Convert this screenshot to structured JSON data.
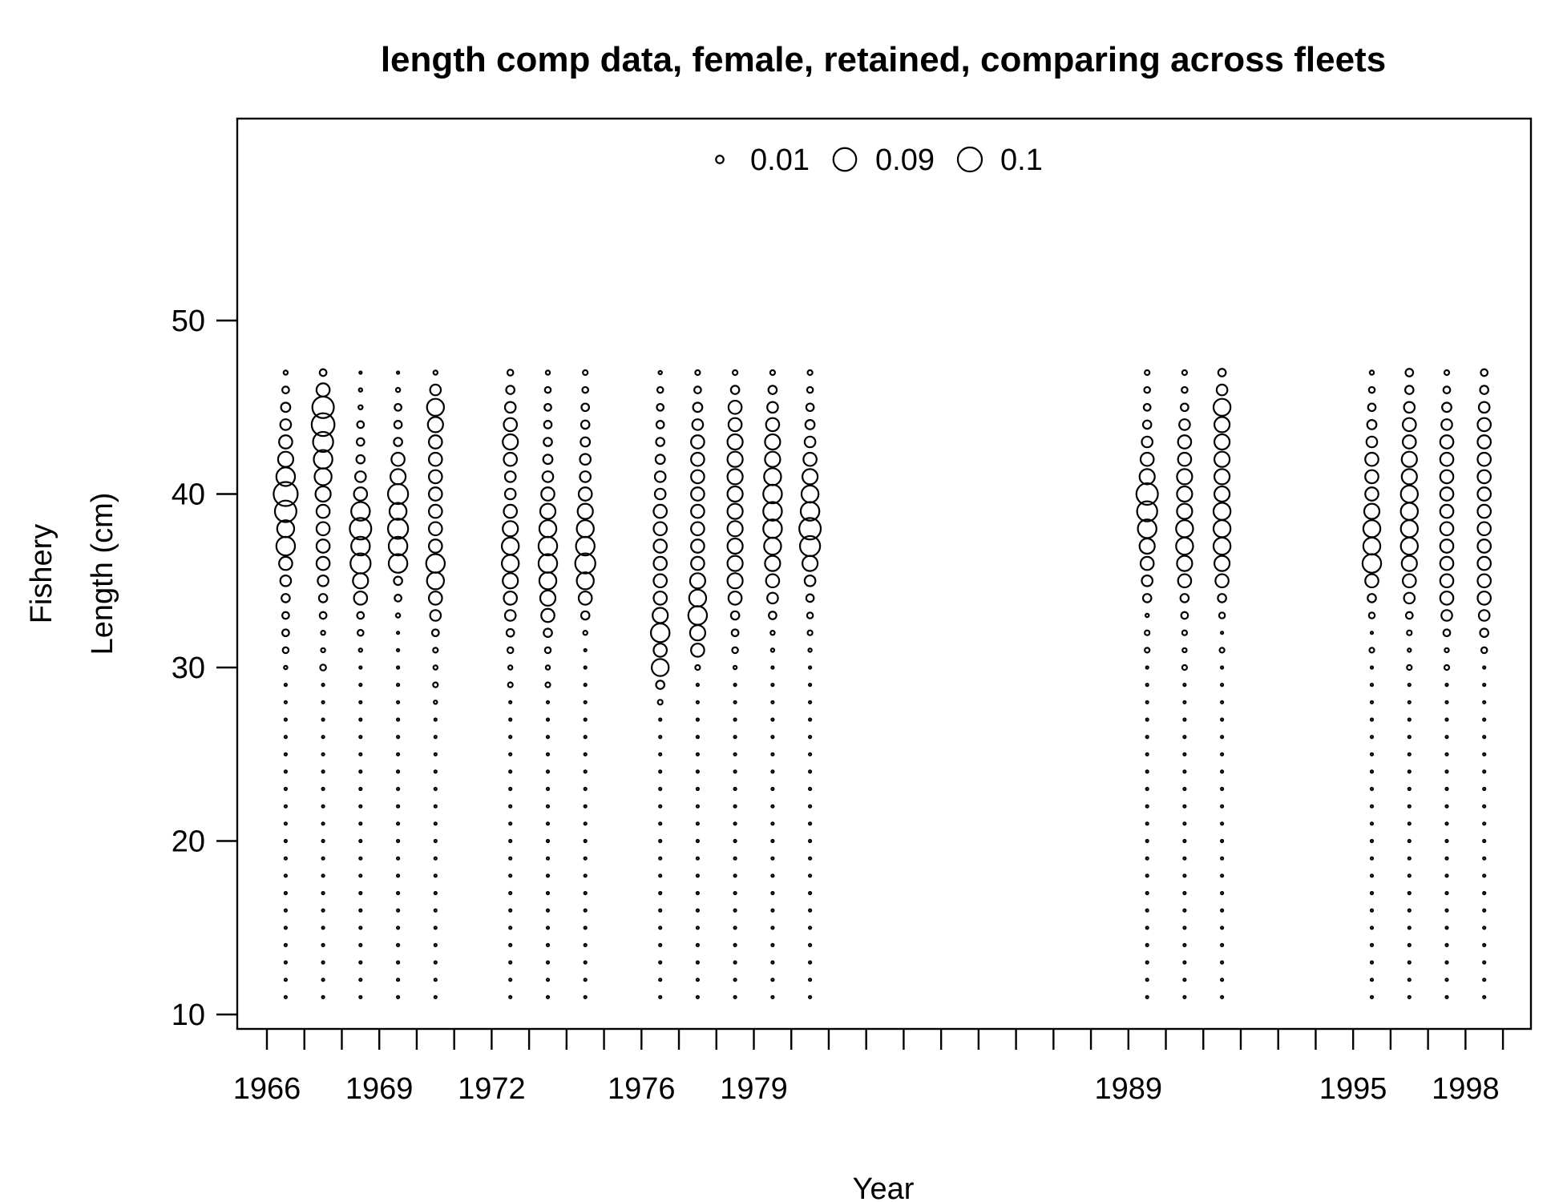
{
  "chart_data": {
    "type": "scatter",
    "title": "length comp data, female, retained, comparing across fleets",
    "xlabel": "Year",
    "ylabel_line1": "Fishery",
    "ylabel_line2": "Length (cm)",
    "y_ticks": [
      10,
      20,
      30,
      40,
      50
    ],
    "ylim": [
      10,
      60
    ],
    "x_tick_labels": [
      "1966",
      "1969",
      "1972",
      "1976",
      "1979",
      "1989",
      "1995",
      "1998"
    ],
    "x_ticks": [
      1966,
      1967,
      1968,
      1969,
      1970,
      1971,
      1972,
      1973,
      1974,
      1975,
      1976,
      1977,
      1978,
      1979,
      1980,
      1981,
      1982,
      1983,
      1984,
      1985,
      1986,
      1987,
      1988,
      1989,
      1990,
      1991,
      1992,
      1993,
      1994,
      1995,
      1996,
      1997,
      1998,
      1999
    ],
    "xlim": [
      1965.6,
      1999.3
    ],
    "legend": {
      "placement": "top",
      "values": [
        0.01,
        0.09,
        0.1
      ],
      "labels": [
        "0.01",
        "0.09",
        "0.1"
      ]
    },
    "length_bins": [
      11,
      12,
      13,
      14,
      15,
      16,
      17,
      18,
      19,
      20,
      21,
      22,
      23,
      24,
      25,
      26,
      27,
      28,
      29,
      30,
      31,
      32,
      33,
      34,
      35,
      36,
      37,
      38,
      39,
      40,
      41,
      42,
      43,
      44,
      45,
      46,
      47
    ],
    "series": [
      {
        "year": 1966.5,
        "proportions": [
          0.001,
          0.001,
          0.001,
          0.001,
          0.001,
          0.001,
          0.001,
          0.001,
          0.001,
          0.001,
          0.001,
          0.001,
          0.001,
          0.001,
          0.001,
          0.001,
          0.001,
          0.001,
          0.001,
          0.002,
          0.006,
          0.008,
          0.008,
          0.012,
          0.02,
          0.03,
          0.06,
          0.05,
          0.08,
          0.1,
          0.06,
          0.04,
          0.03,
          0.02,
          0.015,
          0.008,
          0.003
        ]
      },
      {
        "year": 1967.5,
        "proportions": [
          0.001,
          0.001,
          0.001,
          0.001,
          0.001,
          0.001,
          0.001,
          0.001,
          0.001,
          0.001,
          0.001,
          0.001,
          0.001,
          0.001,
          0.001,
          0.001,
          0.001,
          0.001,
          0.001,
          0.006,
          0.003,
          0.003,
          0.008,
          0.012,
          0.02,
          0.03,
          0.03,
          0.03,
          0.03,
          0.04,
          0.05,
          0.06,
          0.07,
          0.09,
          0.08,
          0.03,
          0.008
        ]
      },
      {
        "year": 1968.5,
        "proportions": [
          0.001,
          0.001,
          0.001,
          0.001,
          0.001,
          0.001,
          0.001,
          0.001,
          0.001,
          0.001,
          0.001,
          0.001,
          0.001,
          0.001,
          0.001,
          0.001,
          0.001,
          0.001,
          0.001,
          0.001,
          0.002,
          0.006,
          0.008,
          0.03,
          0.04,
          0.07,
          0.06,
          0.08,
          0.06,
          0.03,
          0.02,
          0.012,
          0.01,
          0.008,
          0.003,
          0.002,
          0.001
        ]
      },
      {
        "year": 1969.5,
        "proportions": [
          0.001,
          0.001,
          0.001,
          0.001,
          0.001,
          0.001,
          0.001,
          0.001,
          0.001,
          0.001,
          0.001,
          0.001,
          0.001,
          0.001,
          0.001,
          0.001,
          0.001,
          0.001,
          0.001,
          0.001,
          0.001,
          0.001,
          0.003,
          0.008,
          0.012,
          0.06,
          0.06,
          0.07,
          0.05,
          0.07,
          0.04,
          0.03,
          0.012,
          0.01,
          0.008,
          0.003,
          0.001
        ]
      },
      {
        "year": 1970.5,
        "proportions": [
          0.001,
          0.001,
          0.001,
          0.001,
          0.001,
          0.001,
          0.001,
          0.001,
          0.001,
          0.001,
          0.001,
          0.001,
          0.001,
          0.001,
          0.001,
          0.001,
          0.001,
          0.002,
          0.004,
          0.003,
          0.004,
          0.008,
          0.02,
          0.03,
          0.05,
          0.06,
          0.03,
          0.03,
          0.03,
          0.03,
          0.03,
          0.03,
          0.03,
          0.04,
          0.05,
          0.02,
          0.003
        ]
      },
      {
        "year": 1972.5,
        "proportions": [
          0.001,
          0.001,
          0.001,
          0.001,
          0.001,
          0.001,
          0.001,
          0.001,
          0.001,
          0.001,
          0.001,
          0.001,
          0.001,
          0.001,
          0.001,
          0.001,
          0.001,
          0.001,
          0.004,
          0.003,
          0.006,
          0.01,
          0.02,
          0.03,
          0.04,
          0.05,
          0.05,
          0.04,
          0.03,
          0.02,
          0.02,
          0.03,
          0.04,
          0.03,
          0.02,
          0.012,
          0.006
        ]
      },
      {
        "year": 1973.5,
        "proportions": [
          0.001,
          0.001,
          0.001,
          0.001,
          0.001,
          0.001,
          0.001,
          0.001,
          0.001,
          0.001,
          0.001,
          0.001,
          0.001,
          0.001,
          0.001,
          0.001,
          0.001,
          0.001,
          0.004,
          0.003,
          0.006,
          0.012,
          0.03,
          0.04,
          0.05,
          0.06,
          0.06,
          0.05,
          0.04,
          0.03,
          0.02,
          0.015,
          0.012,
          0.01,
          0.008,
          0.006,
          0.003
        ]
      },
      {
        "year": 1974.5,
        "proportions": [
          0.001,
          0.001,
          0.001,
          0.001,
          0.001,
          0.001,
          0.001,
          0.001,
          0.001,
          0.001,
          0.001,
          0.001,
          0.001,
          0.001,
          0.001,
          0.001,
          0.001,
          0.001,
          0.001,
          0.001,
          0.001,
          0.003,
          0.012,
          0.03,
          0.05,
          0.07,
          0.06,
          0.05,
          0.04,
          0.03,
          0.02,
          0.02,
          0.015,
          0.012,
          0.01,
          0.006,
          0.004
        ]
      },
      {
        "year": 1976.5,
        "proportions": [
          0.001,
          0.001,
          0.001,
          0.001,
          0.001,
          0.001,
          0.001,
          0.001,
          0.001,
          0.001,
          0.001,
          0.001,
          0.001,
          0.001,
          0.001,
          0.001,
          0.001,
          0.004,
          0.012,
          0.05,
          0.03,
          0.06,
          0.04,
          0.03,
          0.03,
          0.03,
          0.03,
          0.03,
          0.03,
          0.02,
          0.02,
          0.015,
          0.012,
          0.01,
          0.008,
          0.006,
          0.002
        ]
      },
      {
        "year": 1977.5,
        "proportions": [
          0.001,
          0.001,
          0.001,
          0.001,
          0.001,
          0.001,
          0.001,
          0.001,
          0.001,
          0.001,
          0.001,
          0.001,
          0.001,
          0.001,
          0.001,
          0.001,
          0.001,
          0.001,
          0.001,
          0.004,
          0.03,
          0.04,
          0.06,
          0.05,
          0.04,
          0.03,
          0.03,
          0.03,
          0.03,
          0.03,
          0.03,
          0.03,
          0.03,
          0.02,
          0.015,
          0.008,
          0.004
        ]
      },
      {
        "year": 1978.5,
        "proportions": [
          0.001,
          0.001,
          0.001,
          0.001,
          0.001,
          0.001,
          0.001,
          0.001,
          0.001,
          0.001,
          0.001,
          0.001,
          0.001,
          0.001,
          0.001,
          0.001,
          0.001,
          0.001,
          0.001,
          0.002,
          0.006,
          0.008,
          0.012,
          0.03,
          0.04,
          0.04,
          0.04,
          0.04,
          0.04,
          0.04,
          0.04,
          0.04,
          0.04,
          0.03,
          0.03,
          0.012,
          0.004
        ]
      },
      {
        "year": 1979.5,
        "proportions": [
          0.001,
          0.001,
          0.001,
          0.001,
          0.001,
          0.001,
          0.001,
          0.001,
          0.001,
          0.001,
          0.001,
          0.001,
          0.001,
          0.001,
          0.001,
          0.001,
          0.001,
          0.001,
          0.001,
          0.001,
          0.002,
          0.003,
          0.01,
          0.02,
          0.03,
          0.04,
          0.05,
          0.06,
          0.06,
          0.06,
          0.05,
          0.04,
          0.04,
          0.03,
          0.02,
          0.012,
          0.004
        ]
      },
      {
        "year": 1980.5,
        "proportions": [
          0.001,
          0.001,
          0.001,
          0.001,
          0.001,
          0.001,
          0.001,
          0.001,
          0.001,
          0.001,
          0.001,
          0.001,
          0.001,
          0.001,
          0.001,
          0.001,
          0.001,
          0.001,
          0.001,
          0.001,
          0.002,
          0.004,
          0.006,
          0.01,
          0.02,
          0.04,
          0.07,
          0.08,
          0.06,
          0.05,
          0.04,
          0.03,
          0.02,
          0.015,
          0.01,
          0.006,
          0.004
        ]
      },
      {
        "year": 1989.5,
        "proportions": [
          0.001,
          0.001,
          0.001,
          0.001,
          0.001,
          0.001,
          0.001,
          0.001,
          0.001,
          0.001,
          0.001,
          0.001,
          0.001,
          0.001,
          0.001,
          0.001,
          0.001,
          0.001,
          0.001,
          0.001,
          0.004,
          0.004,
          0.002,
          0.012,
          0.02,
          0.03,
          0.04,
          0.06,
          0.07,
          0.08,
          0.04,
          0.03,
          0.02,
          0.012,
          0.008,
          0.006,
          0.004
        ]
      },
      {
        "year": 1990.5,
        "proportions": [
          0.001,
          0.001,
          0.001,
          0.001,
          0.001,
          0.001,
          0.001,
          0.001,
          0.001,
          0.001,
          0.001,
          0.001,
          0.001,
          0.001,
          0.001,
          0.001,
          0.001,
          0.001,
          0.001,
          0.004,
          0.003,
          0.004,
          0.008,
          0.012,
          0.03,
          0.04,
          0.05,
          0.05,
          0.04,
          0.04,
          0.04,
          0.03,
          0.03,
          0.02,
          0.01,
          0.006,
          0.004
        ]
      },
      {
        "year": 1991.5,
        "proportions": [
          0.001,
          0.001,
          0.001,
          0.001,
          0.001,
          0.001,
          0.001,
          0.001,
          0.001,
          0.001,
          0.001,
          0.001,
          0.001,
          0.001,
          0.001,
          0.001,
          0.001,
          0.001,
          0.001,
          0.001,
          0.004,
          0.001,
          0.006,
          0.012,
          0.03,
          0.04,
          0.05,
          0.05,
          0.05,
          0.04,
          0.04,
          0.04,
          0.04,
          0.04,
          0.05,
          0.02,
          0.01
        ]
      },
      {
        "year": 1995.5,
        "proportions": [
          0.001,
          0.001,
          0.001,
          0.001,
          0.001,
          0.001,
          0.001,
          0.001,
          0.001,
          0.001,
          0.001,
          0.001,
          0.001,
          0.001,
          0.001,
          0.001,
          0.001,
          0.001,
          0.001,
          0.001,
          0.004,
          0.001,
          0.006,
          0.012,
          0.03,
          0.06,
          0.05,
          0.05,
          0.04,
          0.03,
          0.03,
          0.03,
          0.02,
          0.015,
          0.01,
          0.006,
          0.003
        ]
      },
      {
        "year": 1996.5,
        "proportions": [
          0.001,
          0.001,
          0.001,
          0.001,
          0.001,
          0.001,
          0.001,
          0.001,
          0.001,
          0.001,
          0.001,
          0.001,
          0.001,
          0.001,
          0.001,
          0.001,
          0.001,
          0.001,
          0.001,
          0.004,
          0.002,
          0.004,
          0.008,
          0.02,
          0.03,
          0.04,
          0.05,
          0.05,
          0.05,
          0.05,
          0.04,
          0.04,
          0.03,
          0.03,
          0.02,
          0.012,
          0.01
        ]
      },
      {
        "year": 1997.5,
        "proportions": [
          0.001,
          0.001,
          0.001,
          0.001,
          0.001,
          0.001,
          0.001,
          0.001,
          0.001,
          0.001,
          0.001,
          0.001,
          0.001,
          0.001,
          0.001,
          0.001,
          0.001,
          0.001,
          0.001,
          0.004,
          0.003,
          0.008,
          0.02,
          0.03,
          0.03,
          0.03,
          0.03,
          0.03,
          0.03,
          0.03,
          0.03,
          0.03,
          0.03,
          0.02,
          0.015,
          0.008,
          0.004
        ]
      },
      {
        "year": 1998.5,
        "proportions": [
          0.001,
          0.001,
          0.001,
          0.001,
          0.001,
          0.001,
          0.001,
          0.001,
          0.001,
          0.001,
          0.001,
          0.001,
          0.001,
          0.001,
          0.001,
          0.001,
          0.001,
          0.001,
          0.001,
          0.001,
          0.006,
          0.012,
          0.02,
          0.03,
          0.03,
          0.03,
          0.03,
          0.03,
          0.03,
          0.03,
          0.03,
          0.03,
          0.03,
          0.03,
          0.02,
          0.012,
          0.008
        ]
      }
    ]
  }
}
